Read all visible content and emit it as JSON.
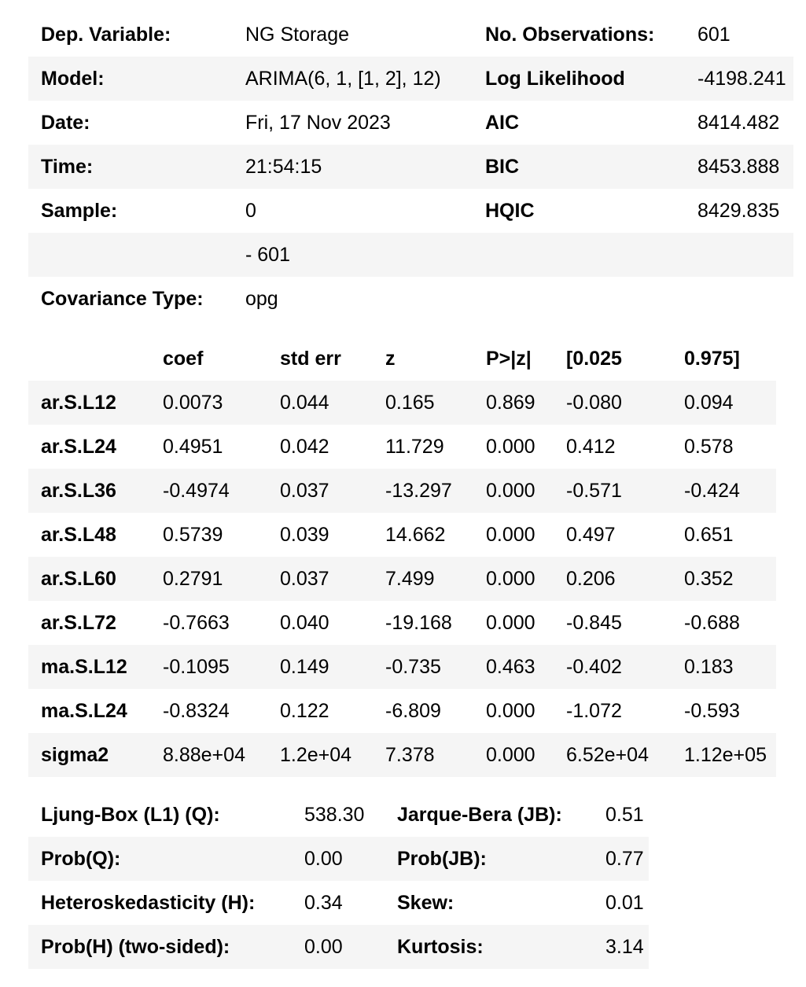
{
  "header": {
    "rows": [
      {
        "l1": "Dep. Variable:",
        "v1": "NG Storage",
        "l2": "No. Observations:",
        "v2": "601"
      },
      {
        "l1": "Model:",
        "v1": "ARIMA(6, 1, [1, 2], 12)",
        "l2": "Log Likelihood",
        "v2": "-4198.241"
      },
      {
        "l1": "Date:",
        "v1": "Fri, 17 Nov 2023",
        "l2": "AIC",
        "v2": "8414.482"
      },
      {
        "l1": "Time:",
        "v1": "21:54:15",
        "l2": "BIC",
        "v2": "8453.888"
      },
      {
        "l1": "Sample:",
        "v1": "0",
        "l2": "HQIC",
        "v2": "8429.835"
      },
      {
        "l1": "",
        "v1": "- 601",
        "l2": "",
        "v2": ""
      },
      {
        "l1": "Covariance Type:",
        "v1": "opg",
        "l2": "",
        "v2": ""
      }
    ]
  },
  "coef_table": {
    "columns": [
      "",
      "coef",
      "std err",
      "z",
      "P>|z|",
      "[0.025",
      "0.975]"
    ],
    "rows": [
      [
        "ar.S.L12",
        "0.0073",
        "0.044",
        "0.165",
        "0.869",
        "-0.080",
        "0.094"
      ],
      [
        "ar.S.L24",
        "0.4951",
        "0.042",
        "11.729",
        "0.000",
        "0.412",
        "0.578"
      ],
      [
        "ar.S.L36",
        "-0.4974",
        "0.037",
        "-13.297",
        "0.000",
        "-0.571",
        "-0.424"
      ],
      [
        "ar.S.L48",
        "0.5739",
        "0.039",
        "14.662",
        "0.000",
        "0.497",
        "0.651"
      ],
      [
        "ar.S.L60",
        "0.2791",
        "0.037",
        "7.499",
        "0.000",
        "0.206",
        "0.352"
      ],
      [
        "ar.S.L72",
        "-0.7663",
        "0.040",
        "-19.168",
        "0.000",
        "-0.845",
        "-0.688"
      ],
      [
        "ma.S.L12",
        "-0.1095",
        "0.149",
        "-0.735",
        "0.463",
        "-0.402",
        "0.183"
      ],
      [
        "ma.S.L24",
        "-0.8324",
        "0.122",
        "-6.809",
        "0.000",
        "-1.072",
        "-0.593"
      ],
      [
        "sigma2",
        "8.88e+04",
        "1.2e+04",
        "7.378",
        "0.000",
        "6.52e+04",
        "1.12e+05"
      ]
    ]
  },
  "diagnostics": {
    "rows": [
      {
        "l1": "Ljung-Box (L1) (Q):",
        "v1": "538.30",
        "l2": "Jarque-Bera (JB):",
        "v2": "0.51"
      },
      {
        "l1": "Prob(Q):",
        "v1": "0.00",
        "l2": "Prob(JB):",
        "v2": "0.77"
      },
      {
        "l1": "Heteroskedasticity (H):",
        "v1": "0.34",
        "l2": "Skew:",
        "v2": "0.01"
      },
      {
        "l1": "Prob(H) (two-sided):",
        "v1": "0.00",
        "l2": "Kurtosis:",
        "v2": "3.14"
      }
    ]
  },
  "colors": {
    "stripe": "#f5f5f5",
    "background": "#ffffff",
    "text": "#000000"
  }
}
